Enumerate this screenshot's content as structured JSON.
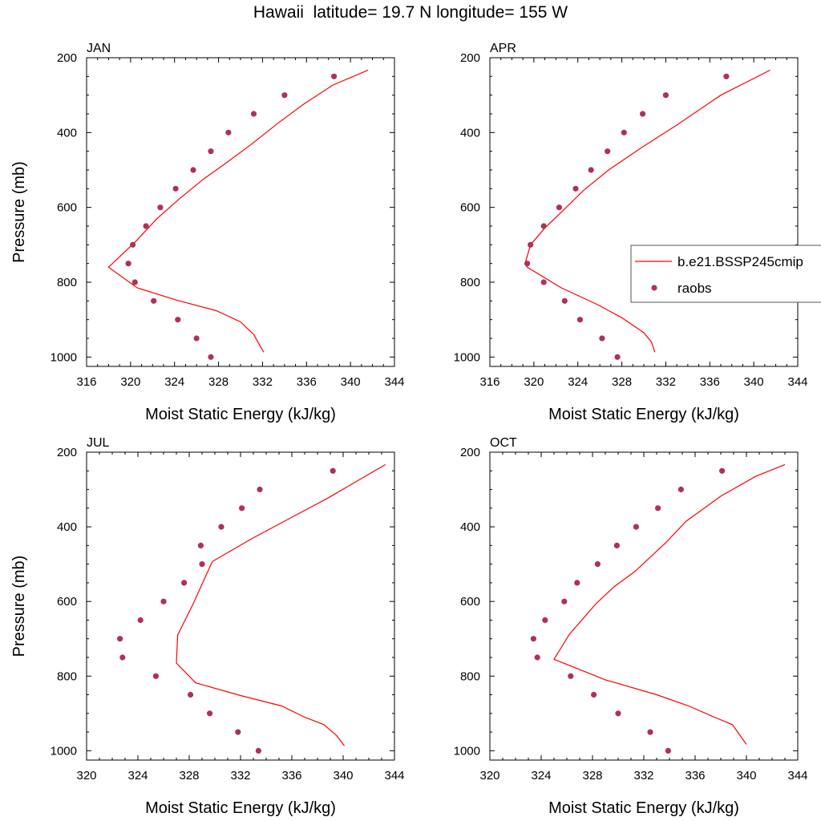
{
  "title": "Hawaii  latitude= 19.7 N longitude= 155 W",
  "legend": {
    "model_label": "b.e21.BSSP245cmip",
    "obs_label": "raobs"
  },
  "colors": {
    "model": "#ff0000",
    "obs": "#b0305c",
    "axis": "#000000"
  },
  "chart_data": [
    {
      "type": "line",
      "panel_label": "JAN",
      "xlabel": "Moist Static Energy (kJ/kg)",
      "ylabel": "Pressure (mb)",
      "xlim": [
        316,
        344
      ],
      "ylim": [
        200,
        1025
      ],
      "y_inverted": true,
      "xticks": [
        316,
        320,
        324,
        328,
        332,
        336,
        340,
        344
      ],
      "yticks": [
        200,
        400,
        600,
        800,
        1000
      ],
      "series": [
        {
          "name": "b.e21.BSSP245cmip",
          "kind": "line",
          "x": [
            341.6,
            338.4,
            335.8,
            333.4,
            331.0,
            328.6,
            326.6,
            324.4,
            322.4,
            320.5,
            318.0,
            320.6,
            324.2,
            327.8,
            330.0,
            331.2,
            332.1
          ],
          "y": [
            233,
            273,
            323,
            375,
            431,
            483,
            525,
            578,
            630,
            690,
            760,
            815,
            848,
            876,
            906,
            940,
            987
          ]
        },
        {
          "name": "raobs",
          "kind": "scatter",
          "x": [
            338.5,
            334.0,
            331.2,
            328.9,
            327.3,
            325.7,
            324.1,
            322.7,
            321.4,
            320.2,
            319.8,
            320.4,
            322.1,
            324.3,
            326.0,
            327.3
          ],
          "y": [
            250,
            300,
            350,
            400,
            450,
            500,
            550,
            600,
            650,
            700,
            750,
            800,
            850,
            900,
            950,
            1000
          ]
        }
      ]
    },
    {
      "type": "line",
      "panel_label": "APR",
      "xlabel": "Moist Static Energy (kJ/kg)",
      "ylabel": "",
      "xlim": [
        316,
        344
      ],
      "ylim": [
        200,
        1025
      ],
      "y_inverted": true,
      "xticks": [
        316,
        320,
        324,
        328,
        332,
        336,
        340,
        344
      ],
      "yticks": [
        200,
        400,
        600,
        800,
        1000
      ],
      "series": [
        {
          "name": "b.e21.BSSP245cmip",
          "kind": "line",
          "x": [
            341.5,
            337.0,
            333.0,
            329.8,
            326.8,
            324.5,
            322.6,
            321.0,
            319.7,
            319.2,
            319.4,
            322.5,
            325.8,
            328.0,
            330.0,
            330.7,
            331.0
          ],
          "y": [
            233,
            300,
            380,
            440,
            500,
            555,
            610,
            655,
            700,
            750,
            760,
            815,
            860,
            895,
            935,
            960,
            987
          ]
        },
        {
          "name": "raobs",
          "kind": "scatter",
          "x": [
            337.5,
            332.0,
            329.9,
            328.2,
            326.7,
            325.2,
            323.8,
            322.3,
            320.9,
            319.7,
            319.4,
            320.9,
            322.8,
            324.2,
            326.2,
            327.6
          ],
          "y": [
            250,
            300,
            350,
            400,
            450,
            500,
            550,
            600,
            650,
            700,
            750,
            800,
            850,
            900,
            950,
            1000
          ]
        }
      ]
    },
    {
      "type": "line",
      "panel_label": "JUL",
      "xlabel": "Moist Static Energy (kJ/kg)",
      "ylabel": "Pressure (mb)",
      "xlim": [
        320,
        344
      ],
      "ylim": [
        200,
        1025
      ],
      "y_inverted": true,
      "xticks": [
        320,
        324,
        328,
        332,
        336,
        340,
        344
      ],
      "yticks": [
        200,
        400,
        600,
        800,
        1000
      ],
      "series": [
        {
          "name": "b.e21.BSSP245cmip",
          "kind": "line",
          "x": [
            343.3,
            341.3,
            338.8,
            335.8,
            332.8,
            329.8,
            328.3,
            327.1,
            327.0,
            328.5,
            332.0,
            335.2,
            337.0,
            338.5,
            339.5,
            340.1
          ],
          "y": [
            233,
            273,
            323,
            378,
            433,
            493,
            607,
            690,
            765,
            818,
            852,
            880,
            910,
            930,
            960,
            987
          ]
        },
        {
          "name": "raobs",
          "kind": "scatter",
          "x": [
            339.2,
            333.5,
            332.1,
            330.5,
            328.9,
            329.0,
            327.6,
            326.0,
            324.2,
            322.6,
            322.8,
            325.4,
            328.1,
            329.6,
            331.8,
            333.4
          ],
          "y": [
            250,
            300,
            350,
            400,
            450,
            500,
            550,
            600,
            650,
            700,
            750,
            800,
            850,
            900,
            950,
            1000
          ]
        }
      ]
    },
    {
      "type": "line",
      "panel_label": "OCT",
      "xlabel": "Moist Static Energy (kJ/kg)",
      "ylabel": "",
      "xlim": [
        320,
        344
      ],
      "ylim": [
        200,
        1025
      ],
      "y_inverted": true,
      "xticks": [
        320,
        324,
        328,
        332,
        336,
        340,
        344
      ],
      "yticks": [
        200,
        400,
        600,
        800,
        1000
      ],
      "series": [
        {
          "name": "b.e21.BSSP245cmip",
          "kind": "line",
          "x": [
            343.0,
            340.7,
            338.0,
            335.3,
            333.7,
            331.3,
            329.7,
            328.3,
            326.2,
            325.0,
            329.0,
            333.0,
            335.5,
            337.5,
            338.9,
            340.0
          ],
          "y": [
            233,
            265,
            318,
            385,
            443,
            520,
            560,
            605,
            688,
            755,
            810,
            850,
            880,
            910,
            930,
            983
          ]
        },
        {
          "name": "raobs",
          "kind": "scatter",
          "x": [
            338.1,
            334.9,
            333.1,
            331.4,
            329.9,
            328.4,
            326.8,
            325.8,
            324.3,
            323.4,
            323.7,
            326.3,
            328.1,
            330.0,
            332.5,
            333.9
          ],
          "y": [
            250,
            300,
            350,
            400,
            450,
            500,
            550,
            600,
            650,
            700,
            750,
            800,
            850,
            900,
            950,
            1000
          ]
        }
      ]
    }
  ]
}
